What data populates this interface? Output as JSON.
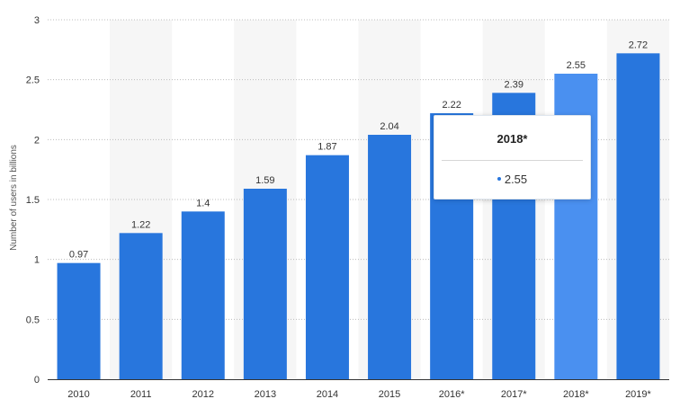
{
  "chart_data": {
    "type": "bar",
    "categories": [
      "2010",
      "2011",
      "2012",
      "2013",
      "2014",
      "2015",
      "2016*",
      "2017*",
      "2018*",
      "2019*"
    ],
    "values": [
      0.97,
      1.22,
      1.4,
      1.59,
      1.87,
      2.04,
      2.22,
      2.39,
      2.55,
      2.72
    ],
    "data_labels": [
      "0.97",
      "1.22",
      "1.4",
      "1.59",
      "1.87",
      "2.04",
      "2.22",
      "2.39",
      "2.55",
      "2.72"
    ],
    "ylabel": "Number of users in billions",
    "ylim": [
      0,
      3
    ],
    "yticks": [
      "0",
      "0.5",
      "1",
      "1.5",
      "2",
      "2.5",
      "3"
    ],
    "ytick_values": [
      0,
      0.5,
      1,
      1.5,
      2,
      2.5,
      3
    ],
    "grid": "dotted horizontal",
    "highlighted_category": "2018*",
    "colors": {
      "bar": "#2876dd",
      "bar_highlight": "#4a90f0",
      "band": "#f6f6f6",
      "grid": "#bcbcbc",
      "axis": "#333333",
      "text": "#333333"
    }
  },
  "tooltip": {
    "title": "2018*",
    "value": "2.55"
  }
}
